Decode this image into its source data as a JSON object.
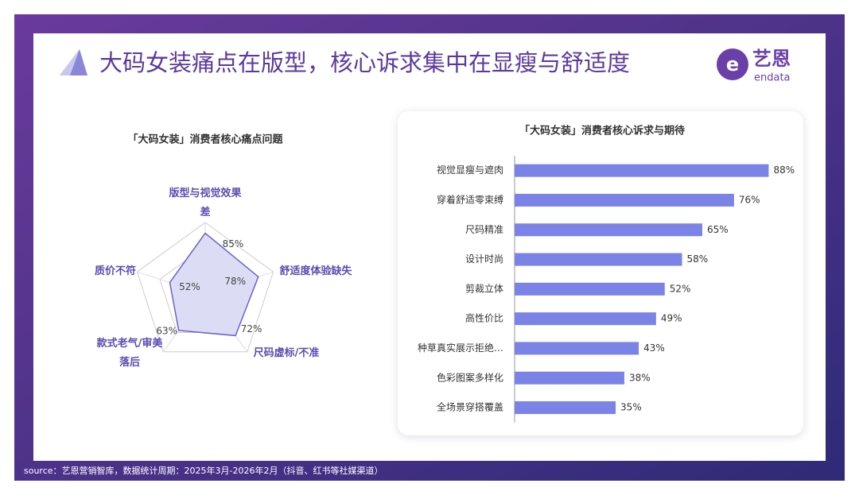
{
  "title": "大码女装痛点在版型，核心诉求集中在显瘦与舒适度",
  "logo": {
    "cn": "艺恩",
    "en": "endata"
  },
  "source": "source：艺恩营销智库，数据统计周期：2025年3月-2026年2月（抖音、红书等社媒渠道）",
  "chart_data": [
    {
      "type": "radar",
      "title": "「大码女装」消费者核心痛点问题",
      "categories": [
        "版型与视觉效果差",
        "舒适度体验缺失",
        "尺码虚标/不准",
        "款式老气/审美落后",
        "质价不符"
      ],
      "values": [
        85,
        78,
        72,
        63,
        52
      ],
      "value_labels": [
        "85%",
        "78%",
        "72%",
        "63%",
        "52%"
      ],
      "rlim": [
        0,
        100
      ],
      "color": "#6c63c9",
      "grid": true
    },
    {
      "type": "hbar",
      "title": "「大码女装」消费者核心诉求与期待",
      "categories": [
        "视觉显瘦与遮肉",
        "穿着舒适零束缚",
        "尺码精准",
        "设计时尚",
        "剪裁立体",
        "高性价比",
        "种草真实展示拒绝…",
        "色彩图案多样化",
        "全场景穿搭覆盖"
      ],
      "values": [
        88,
        76,
        65,
        58,
        52,
        49,
        43,
        38,
        35
      ],
      "value_labels": [
        "88%",
        "76%",
        "65%",
        "58%",
        "52%",
        "49%",
        "43%",
        "38%",
        "35%"
      ],
      "xlim": [
        0,
        100
      ],
      "color": "#7b83e6"
    }
  ]
}
